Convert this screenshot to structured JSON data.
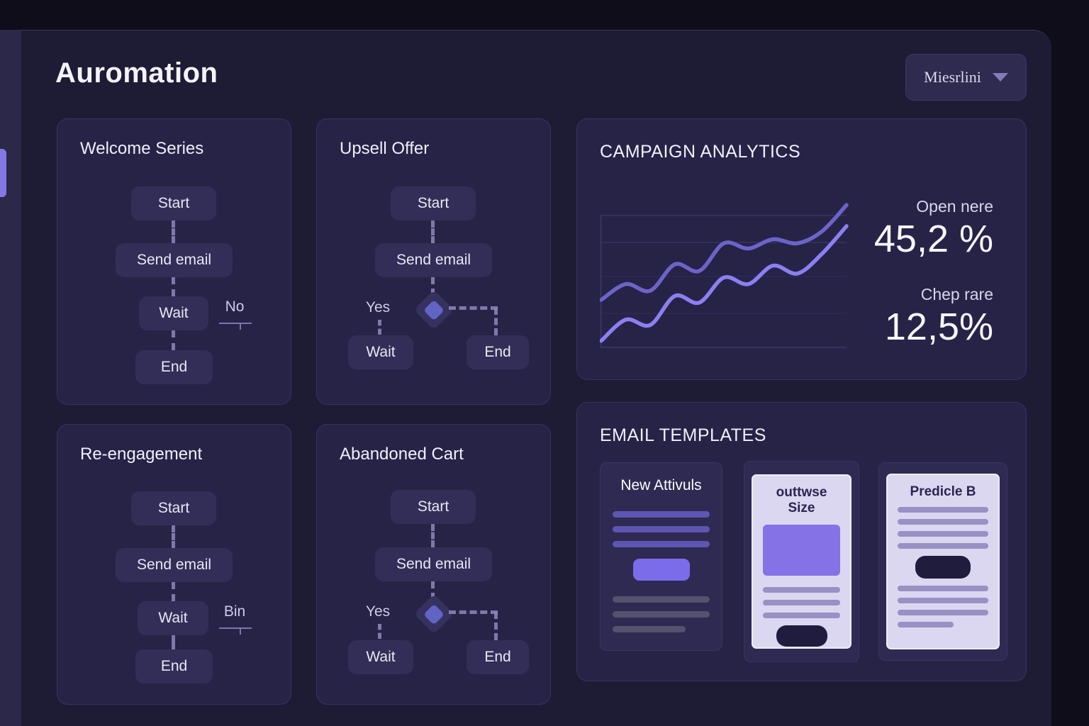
{
  "header": {
    "title": "Auromation",
    "dropdown_label": "Miesrlini"
  },
  "workflows": [
    {
      "title": "Welcome Series",
      "type": "linear",
      "nodes": [
        "Start",
        "Send email",
        "Wait",
        "End"
      ],
      "branch_label": "No"
    },
    {
      "title": "Upsell Offer",
      "type": "branching",
      "nodes": [
        "Start",
        "Send email",
        "Wait",
        "End"
      ],
      "branch_label": "Yes"
    },
    {
      "title": "Re-engagement",
      "type": "linear",
      "nodes": [
        "Start",
        "Send email",
        "Wait",
        "End"
      ],
      "branch_label": "Bin"
    },
    {
      "title": "Abandoned Cart",
      "type": "branching",
      "nodes": [
        "Start",
        "Send email",
        "Wait",
        "End"
      ],
      "branch_label": "Yes"
    }
  ],
  "analytics": {
    "title": "CAMPAIGN ANALYTICS",
    "stats": [
      {
        "label": "Open nere",
        "value": "45,2 %"
      },
      {
        "label": "Chep rare",
        "value": "12,5%"
      }
    ],
    "chart_data": {
      "type": "line",
      "title": "CAMPAIGN ANALYTICS",
      "xlabel": "",
      "ylabel": "",
      "x": [
        0,
        1,
        2,
        3,
        4,
        5,
        6,
        7,
        8,
        9,
        10
      ],
      "series": [
        {
          "name": "Open nere",
          "color": "#6c64c9",
          "values": [
            36,
            48,
            43,
            63,
            58,
            79,
            75,
            82,
            79,
            88,
            108
          ]
        },
        {
          "name": "Chep rare",
          "color": "#8b7ff2",
          "values": [
            5,
            21,
            17,
            39,
            34,
            53,
            48,
            62,
            56,
            71,
            92
          ]
        }
      ],
      "ylim": [
        0,
        100
      ],
      "grid": true,
      "legend": false,
      "note": "no tick labels shown; values estimated from curve positions"
    }
  },
  "templates": {
    "title": "EMAIL TEMPLATES",
    "items": [
      {
        "title": "New Attivuls",
        "style": "dark"
      },
      {
        "title": "outtwse Size",
        "style": "light"
      },
      {
        "title": "Predicle B",
        "style": "light"
      }
    ]
  },
  "colors": {
    "page_bg": "#0f0d19",
    "main_bg": "#1e1b34",
    "card_bg": "#272347",
    "node_bg": "#332e58",
    "accent_purple": "#7b6ceb",
    "sidebar_indicator": "#8478e4",
    "line_open": "#6c64c9",
    "line_click": "#8b7ff2",
    "light_card": "#dcd7f1",
    "dark_navy_button": "#201c3e"
  }
}
